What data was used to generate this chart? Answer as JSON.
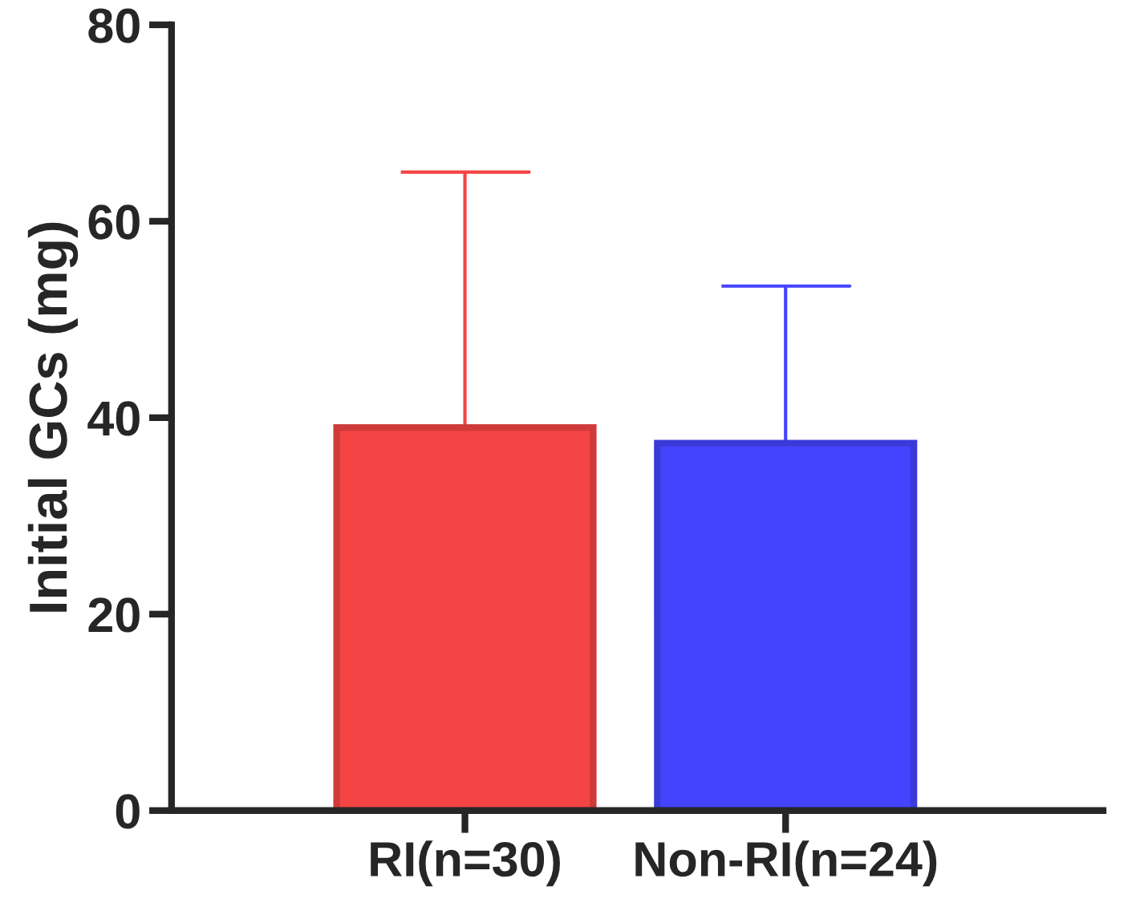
{
  "chart_data": {
    "type": "bar",
    "ylabel": "Initial GCs (mg)",
    "categories": [
      "RI(n=30)",
      "Non-RI(n=24)"
    ],
    "values": [
      39,
      37.4
    ],
    "colors": [
      "#f44444",
      "#4444ff"
    ],
    "errors": [
      [
        39,
        65
      ],
      [
        37.4,
        53.4
      ]
    ],
    "ylim": [
      0,
      80
    ],
    "yticks": [
      0,
      20,
      40,
      60,
      80
    ],
    "grid": false,
    "legend": false
  }
}
